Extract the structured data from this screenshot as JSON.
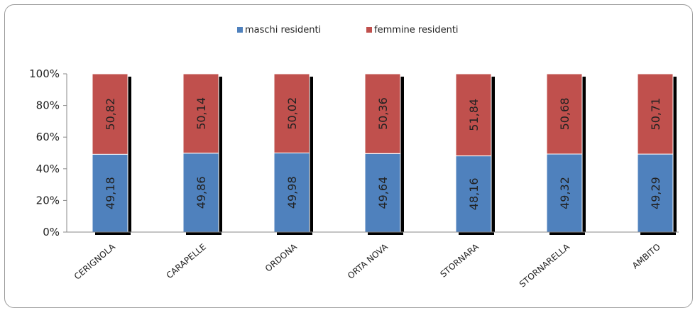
{
  "chart_data": {
    "type": "bar",
    "stacked": "percent",
    "categories": [
      "CERIGNOLA",
      "CARAPELLE",
      "ORDONA",
      "ORTA NOVA",
      "STORNARA",
      "STORNARELLA",
      "AMBITO"
    ],
    "series": [
      {
        "name": "maschi residenti",
        "color": "#4F81BD",
        "values": [
          49.18,
          49.86,
          49.98,
          49.64,
          48.16,
          49.32,
          49.29
        ],
        "labels": [
          "49,18",
          "49,86",
          "49,98",
          "49,64",
          "48,16",
          "49,32",
          "49,29"
        ]
      },
      {
        "name": "femmine residenti",
        "color": "#C0504D",
        "values": [
          50.82,
          50.14,
          50.02,
          50.36,
          51.84,
          50.68,
          50.71
        ],
        "labels": [
          "50,82",
          "50,14",
          "50,02",
          "50,36",
          "51,84",
          "50,68",
          "50,71"
        ]
      }
    ],
    "y_ticks": [
      "0%",
      "20%",
      "40%",
      "60%",
      "80%",
      "100%"
    ],
    "ylim": [
      0,
      100
    ],
    "legend_position": "top",
    "grid": false
  }
}
